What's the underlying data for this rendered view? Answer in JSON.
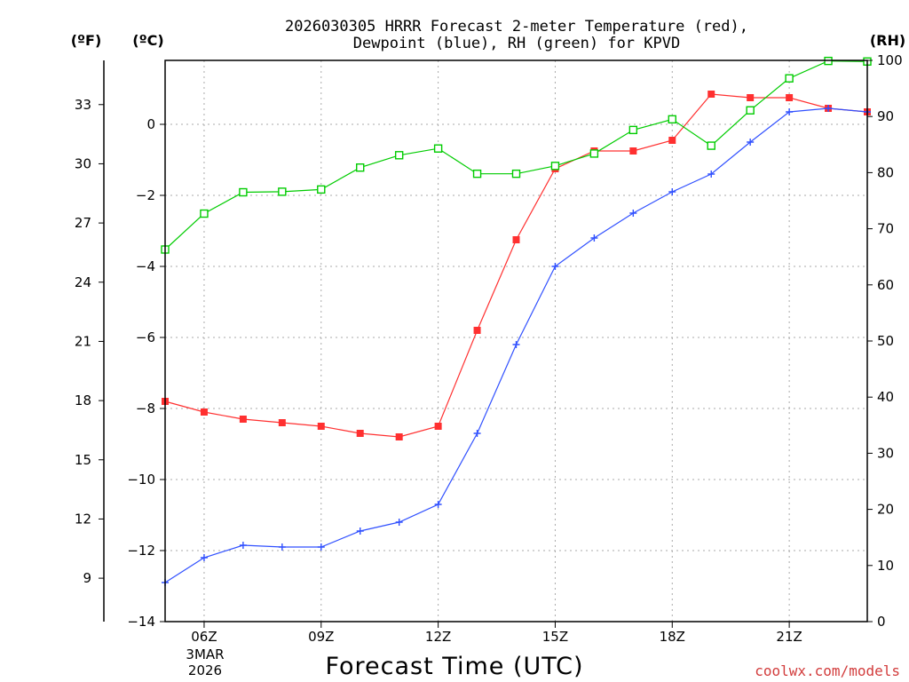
{
  "chart_data": {
    "type": "line",
    "title_lines": [
      "2026030305 HRRR Forecast 2-meter Temperature (red),",
      "Dewpoint (blue), RH (green) for KPVD"
    ],
    "xlabel": "Forecast Time (UTC)",
    "units": {
      "fahrenheit": "(ºF)",
      "celsius": "(ºC)",
      "rh": "(RH)"
    },
    "credit": "coolwx.com/models",
    "x_range_hours": [
      5,
      23
    ],
    "x_ticks": [
      {
        "hour": 6,
        "label": "06Z"
      },
      {
        "hour": 9,
        "label": "09Z"
      },
      {
        "hour": 12,
        "label": "12Z"
      },
      {
        "hour": 15,
        "label": "15Z"
      },
      {
        "hour": 18,
        "label": "18Z"
      },
      {
        "hour": 21,
        "label": "21Z"
      }
    ],
    "date_label": [
      "3MAR",
      "2026"
    ],
    "celsius_axis": {
      "range": [
        -14,
        1.8
      ],
      "ticks": [
        0,
        -2,
        -4,
        -6,
        -8,
        -10,
        -12,
        -14
      ]
    },
    "fahrenheit_axis": {
      "ticks": [
        33,
        30,
        27,
        24,
        21,
        18,
        15,
        12,
        9
      ]
    },
    "rh_axis": {
      "range": [
        0,
        100
      ],
      "ticks": [
        100,
        90,
        80,
        70,
        60,
        50,
        40,
        30,
        20,
        10,
        0
      ]
    },
    "grid": true,
    "x": [
      5,
      6,
      7,
      8,
      9,
      10,
      11,
      12,
      13,
      14,
      15,
      16,
      17,
      18,
      19,
      20,
      21,
      22,
      23
    ],
    "series": [
      {
        "name": "Temperature",
        "axis": "celsius",
        "color": "#ff3030",
        "marker": "filled-square",
        "values": [
          -7.8,
          -8.1,
          -8.3,
          -8.4,
          -8.5,
          -8.7,
          -8.8,
          -8.5,
          -5.8,
          -3.25,
          -1.25,
          -0.75,
          -0.75,
          -0.45,
          0.85,
          0.75,
          0.75,
          0.45,
          0.35
        ]
      },
      {
        "name": "Dewpoint",
        "axis": "celsius",
        "color": "#3050ff",
        "marker": "plus",
        "values": [
          -12.9,
          -12.2,
          -11.85,
          -11.9,
          -11.9,
          -11.45,
          -11.2,
          -10.7,
          -8.7,
          -6.2,
          -4.0,
          -3.2,
          -2.5,
          -1.9,
          -1.4,
          -0.5,
          0.35,
          0.45,
          0.35
        ]
      },
      {
        "name": "Relative Humidity",
        "axis": "rh",
        "color": "#00cc00",
        "marker": "open-square",
        "values": [
          66.3,
          72.7,
          76.5,
          76.6,
          77.0,
          80.9,
          83.1,
          84.3,
          79.8,
          79.8,
          81.2,
          83.4,
          87.6,
          89.5,
          84.8,
          91.1,
          96.8,
          99.9,
          99.8
        ]
      }
    ]
  }
}
